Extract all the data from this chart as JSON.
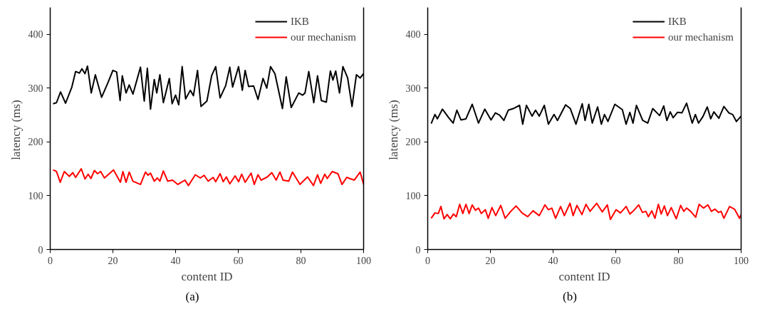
{
  "chart_data": [
    {
      "type": "line",
      "xlabel": "content ID",
      "ylabel": "latency  (ms)",
      "annotations": [
        "(a)"
      ],
      "xlim": [
        0,
        100
      ],
      "ylim": [
        0,
        450
      ],
      "xticks": [
        0,
        20,
        40,
        60,
        80,
        100
      ],
      "yticks": [
        0,
        100,
        200,
        300,
        400
      ],
      "grid": false,
      "legend": "top right",
      "marker": "none",
      "line_style": "solid",
      "series": [
        {
          "name": "IKB",
          "color": "#000000",
          "x": [
            0.9,
            2,
            3.3,
            4.9,
            6.9,
            8.1,
            9.3,
            10.1,
            11.1,
            11.9,
            13.1,
            14.4,
            16.4,
            18.4,
            20,
            21.2,
            22.3,
            23,
            24.2,
            25.2,
            26.4,
            28.8,
            30,
            31,
            32,
            33.2,
            34,
            35,
            36.1,
            38,
            38.9,
            40,
            41,
            42.1,
            43.2,
            44.7,
            45.7,
            47,
            48.1,
            50,
            51.5,
            52.8,
            54.2,
            56,
            57.3,
            58.2,
            60.1,
            61.3,
            62.2,
            63.3,
            64.9,
            66.3,
            67.9,
            69.1,
            70.3,
            71.7,
            74.1,
            75.3,
            76.9,
            79.3,
            80.5,
            81.3,
            82.5,
            84.1,
            85.3,
            86.5,
            88.1,
            89.4,
            90.2,
            91.1,
            92.3,
            93.4,
            94.9,
            96.3,
            97.7,
            98.9,
            100
          ],
          "values": [
            271,
            273,
            293,
            272,
            302,
            331,
            328,
            336,
            327,
            341,
            291,
            325,
            283,
            310,
            333,
            330,
            277,
            323,
            291,
            306,
            289,
            339,
            276,
            337,
            261,
            316,
            291,
            325,
            273,
            318,
            271,
            287,
            269,
            340,
            280,
            296,
            286,
            333,
            266,
            276,
            323,
            340,
            282,
            305,
            339,
            302,
            340,
            296,
            333,
            303,
            304,
            279,
            318,
            300,
            340,
            327,
            262,
            321,
            264,
            291,
            287,
            291,
            331,
            273,
            323,
            277,
            274,
            332,
            315,
            332,
            291,
            340,
            319,
            266,
            325,
            319,
            327
          ]
        },
        {
          "name": "our mechanism",
          "color": "#ff0000",
          "x": [
            0.9,
            2,
            3.2,
            4.5,
            6.1,
            7.2,
            8.1,
            9.9,
            11.1,
            12.1,
            13,
            14.1,
            15.1,
            16.1,
            17.3,
            20.2,
            22.4,
            23.2,
            24.2,
            25.2,
            26.4,
            28.8,
            30.4,
            31.2,
            32,
            33.2,
            34.2,
            35,
            36.1,
            37.5,
            39,
            40.7,
            43,
            44.1,
            46.3,
            47.9,
            49.1,
            50.4,
            52,
            52.8,
            54.2,
            55.2,
            56.2,
            57.3,
            59,
            60.1,
            61.1,
            62.2,
            64.1,
            65.1,
            66.3,
            67.3,
            69.3,
            70.7,
            72.1,
            73.3,
            74.3,
            76.1,
            77.3,
            79.7,
            82.1,
            84,
            85.3,
            86.3,
            87.6,
            88.4,
            90,
            91.8,
            93.1,
            94.6,
            97,
            98.9,
            100
          ],
          "values": [
            148,
            145,
            125,
            145,
            136,
            143,
            134,
            150,
            131,
            140,
            132,
            147,
            141,
            145,
            133,
            148,
            125,
            145,
            125,
            144,
            127,
            121,
            144,
            138,
            142,
            127,
            133,
            127,
            146,
            127,
            129,
            121,
            129,
            119,
            139,
            133,
            138,
            127,
            134,
            126,
            141,
            126,
            135,
            122,
            137,
            126,
            140,
            125,
            142,
            121,
            139,
            129,
            135,
            143,
            129,
            144,
            129,
            127,
            144,
            121,
            135,
            119,
            139,
            123,
            140,
            132,
            145,
            141,
            121,
            134,
            129,
            144,
            121
          ]
        }
      ]
    },
    {
      "type": "line",
      "xlabel": "content ID",
      "ylabel": "latency  (ms)",
      "annotations": [
        "(b)"
      ],
      "xlim": [
        0,
        100
      ],
      "ylim": [
        0,
        450
      ],
      "xticks": [
        0,
        20,
        40,
        60,
        80,
        100
      ],
      "yticks": [
        0,
        100,
        200,
        300,
        400
      ],
      "grid": false,
      "legend": "top right",
      "marker": "none",
      "line_style": "solid",
      "series": [
        {
          "name": "IKB",
          "color": "#000000",
          "x": [
            1.1,
            2.3,
            3.1,
            4.7,
            6.7,
            8.1,
            9.3,
            10.6,
            12.2,
            14.2,
            16.2,
            18.2,
            20.2,
            21.6,
            22.9,
            24.3,
            25.7,
            27.3,
            29.3,
            30.3,
            31.5,
            33.3,
            34.4,
            35.6,
            37.2,
            38.5,
            40.3,
            41.4,
            44,
            45.5,
            47.3,
            49.3,
            50.2,
            51.4,
            52.5,
            54.2,
            55.4,
            56.4,
            57.5,
            59.7,
            62.1,
            63.3,
            64.5,
            65.5,
            66.6,
            68.6,
            70.2,
            71.8,
            74,
            75.3,
            76.3,
            77.4,
            78.3,
            79.7,
            81.1,
            82.6,
            84.4,
            85.4,
            86.4,
            87.8,
            89.2,
            90.3,
            91.3,
            92.9,
            94.5,
            96.1,
            97.3,
            98.5,
            100
          ],
          "values": [
            234,
            251,
            243,
            261,
            245,
            235,
            259,
            241,
            243,
            270,
            235,
            261,
            241,
            254,
            250,
            240,
            259,
            262,
            268,
            233,
            268,
            248,
            259,
            248,
            268,
            233,
            251,
            240,
            269,
            262,
            233,
            271,
            240,
            270,
            235,
            265,
            233,
            251,
            238,
            270,
            260,
            233,
            255,
            235,
            268,
            240,
            235,
            262,
            249,
            267,
            240,
            256,
            245,
            255,
            254,
            272,
            235,
            251,
            235,
            247,
            265,
            243,
            256,
            244,
            266,
            254,
            251,
            238,
            248
          ]
        },
        {
          "name": "our mechanism",
          "color": "#ff0000",
          "x": [
            1.1,
            2.3,
            3.4,
            4.2,
            5.2,
            6.2,
            7.2,
            8.2,
            9.1,
            10.2,
            11.2,
            12.2,
            13.2,
            14.2,
            15.2,
            16.2,
            17.1,
            18.4,
            19.3,
            20.5,
            21.7,
            23.3,
            24.7,
            26.5,
            28.2,
            30.1,
            31.9,
            33.6,
            35.6,
            37.4,
            38.5,
            39.6,
            40.8,
            42.4,
            43.6,
            45.4,
            46.4,
            47.6,
            49.2,
            50.5,
            51.8,
            53.9,
            55.7,
            57.3,
            58.3,
            60.1,
            61.5,
            63.3,
            64.5,
            65.5,
            67.3,
            68.5,
            69.6,
            70.4,
            71.5,
            72.5,
            73.6,
            74.5,
            75.5,
            76.5,
            77.7,
            79.3,
            80.7,
            81.7,
            82.6,
            83.9,
            85.5,
            86.6,
            88,
            89.4,
            90.5,
            91.6,
            92.8,
            93.6,
            94.5,
            96.3,
            97.9,
            99.5,
            100
          ],
          "values": [
            58,
            68,
            67,
            80,
            57,
            65,
            57,
            66,
            61,
            84,
            67,
            84,
            67,
            83,
            73,
            77,
            67,
            74,
            58,
            78,
            63,
            82,
            58,
            71,
            81,
            68,
            61,
            72,
            63,
            83,
            74,
            77,
            58,
            80,
            63,
            86,
            63,
            82,
            65,
            84,
            71,
            86,
            70,
            83,
            56,
            74,
            68,
            80,
            66,
            71,
            83,
            69,
            71,
            61,
            72,
            58,
            84,
            66,
            81,
            63,
            78,
            57,
            82,
            71,
            77,
            71,
            60,
            84,
            77,
            83,
            71,
            75,
            69,
            71,
            58,
            80,
            75,
            58,
            65
          ]
        }
      ]
    }
  ]
}
